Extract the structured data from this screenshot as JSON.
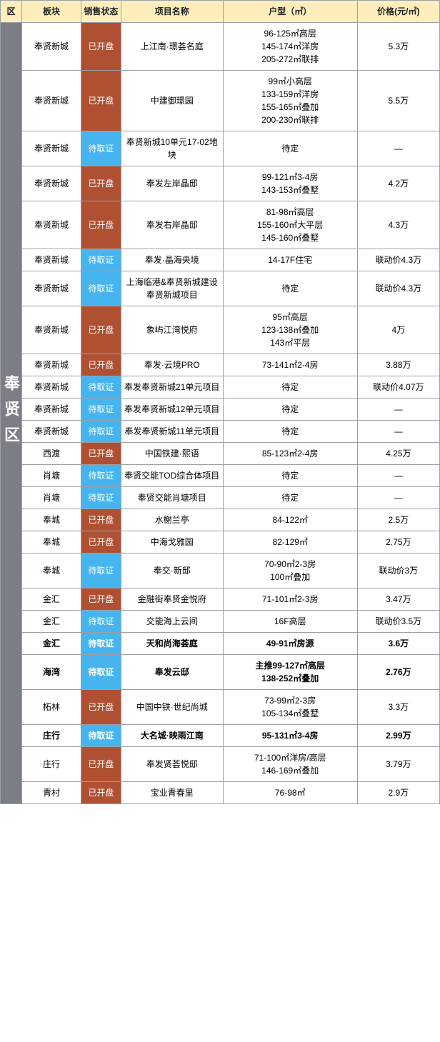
{
  "headers": {
    "district": "区",
    "area": "板块",
    "status": "销售状态",
    "name": "项目名称",
    "type": "户型（㎡）",
    "price": "价格(元/㎡)"
  },
  "district": "奉贤区",
  "status_map": {
    "open": "已开盘",
    "pending": "待取证"
  },
  "colors": {
    "header_bg": "#ffeebc",
    "district_bg": "#7b7e84",
    "open_bg": "#b05032",
    "pending_bg": "#46b5ef",
    "border": "#9aa0a6"
  },
  "rows": [
    {
      "area": "奉贤新城",
      "status": "open",
      "name": "上江南·璟荟名庭",
      "types": [
        "96-125㎡高层",
        "145-174㎡洋房",
        "205-272㎡联排"
      ],
      "price": "5.3万"
    },
    {
      "area": "奉贤新城",
      "status": "open",
      "name": "中建御璟园",
      "types": [
        "99㎡小高层",
        "133-159㎡洋房",
        "155-165㎡叠加",
        "200-230㎡联排"
      ],
      "price": "5.5万"
    },
    {
      "area": "奉贤新城",
      "status": "pending",
      "name": "奉贤新城10单元17-02地块",
      "types": [
        "待定"
      ],
      "price": "—"
    },
    {
      "area": "奉贤新城",
      "status": "open",
      "name": "奉发左岸晶邸",
      "types": [
        "99-121㎡3-4房",
        "143-153㎡叠墅"
      ],
      "price": "4.2万"
    },
    {
      "area": "奉贤新城",
      "status": "open",
      "name": "奉发右岸晶邸",
      "types": [
        "81-98㎡高层",
        "155-160㎡大平层",
        "145-160㎡叠墅"
      ],
      "price": "4.3万"
    },
    {
      "area": "奉贤新城",
      "status": "pending",
      "name": "奉发·晶海央境",
      "types": [
        "14-17F住宅"
      ],
      "price": "联动价4.3万"
    },
    {
      "area": "奉贤新城",
      "status": "pending",
      "name": "上海临港&奉贤新城建设奉贤新城项目",
      "types": [
        "待定"
      ],
      "price": "联动价4.3万"
    },
    {
      "area": "奉贤新城",
      "status": "open",
      "name": "象屿江湾悦府",
      "types": [
        "95㎡高层",
        "123-138㎡叠加",
        "143㎡平层"
      ],
      "price": "4万"
    },
    {
      "area": "奉贤新城",
      "status": "open",
      "name": "奉发·云境PRO",
      "types": [
        "73-141㎡2-4房"
      ],
      "price": "3.88万"
    },
    {
      "area": "奉贤新城",
      "status": "pending",
      "name": "奉发奉贤新城21单元项目",
      "types": [
        "待定"
      ],
      "price": "联动价4.07万"
    },
    {
      "area": "奉贤新城",
      "status": "pending",
      "name": "奉发奉贤新城12单元项目",
      "types": [
        "待定"
      ],
      "price": "—"
    },
    {
      "area": "奉贤新城",
      "status": "pending",
      "name": "奉发奉贤新城11单元项目",
      "types": [
        "待定"
      ],
      "price": "—"
    },
    {
      "area": "西渡",
      "status": "open",
      "name": "中国铁建·熙语",
      "types": [
        "85-123㎡2-4房"
      ],
      "price": "4.25万"
    },
    {
      "area": "肖塘",
      "status": "pending",
      "name": "奉贤交能TOD综合体项目",
      "types": [
        "待定"
      ],
      "price": "—"
    },
    {
      "area": "肖塘",
      "status": "pending",
      "name": "奉贤交能肖塘项目",
      "types": [
        "待定"
      ],
      "price": "—"
    },
    {
      "area": "奉城",
      "status": "open",
      "name": "水榭兰亭",
      "types": [
        "84-122㎡"
      ],
      "price": "2.5万"
    },
    {
      "area": "奉城",
      "status": "open",
      "name": "中海戈雅园",
      "types": [
        "82-129㎡"
      ],
      "price": "2.75万"
    },
    {
      "area": "奉城",
      "status": "pending",
      "name": "奉交·新邸",
      "types": [
        "70-90㎡2-3房",
        "100㎡叠加"
      ],
      "price": "联动价3万"
    },
    {
      "area": "金汇",
      "status": "open",
      "name": "金融街奉贤金悦府",
      "types": [
        "71-101㎡2-3房"
      ],
      "price": "3.47万"
    },
    {
      "area": "金汇",
      "status": "pending",
      "name": "交能海上云间",
      "types": [
        "16F高层"
      ],
      "price": "联动价3.5万"
    },
    {
      "area": "金汇",
      "status": "pending",
      "name": "天和尚海荟庭",
      "types": [
        "49-91㎡房源"
      ],
      "price": "3.6万",
      "bold": true
    },
    {
      "area": "海湾",
      "status": "pending",
      "name": "奉发云邸",
      "types": [
        "主推99-127㎡高层",
        "138-252㎡叠加"
      ],
      "price": "2.76万",
      "bold": true
    },
    {
      "area": "柘林",
      "status": "open",
      "name": "中国中铁·世纪尚城",
      "types": [
        "73-99㎡2-3房",
        "105-134㎡叠墅"
      ],
      "price": "3.3万"
    },
    {
      "area": "庄行",
      "status": "pending",
      "name": "大名城·映雨江南",
      "types": [
        "95-131㎡3-4房"
      ],
      "price": "2.99万",
      "bold": true
    },
    {
      "area": "庄行",
      "status": "open",
      "name": "奉发贤荟悦邸",
      "types": [
        "71-100㎡洋房/高层",
        "146-169㎡叠加"
      ],
      "price": "3.79万"
    },
    {
      "area": "青村",
      "status": "open",
      "name": "宝业青春里",
      "types": [
        "76-98㎡"
      ],
      "price": "2.9万"
    }
  ]
}
